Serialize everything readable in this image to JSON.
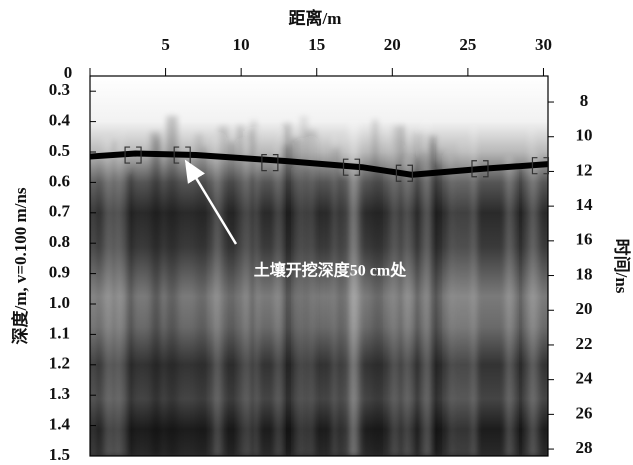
{
  "chart_data": {
    "type": "radargram",
    "x_label": "距离/m",
    "y_label": "深度/m, v=0.100 m/ns",
    "y2_label": "时间/ns",
    "xlim": [
      0,
      30.3
    ],
    "xticks": [
      0,
      5,
      10,
      15,
      20,
      25,
      30
    ],
    "ylim": [
      0.25,
      1.5
    ],
    "yticks": [
      0.3,
      0.4,
      0.5,
      0.6,
      0.7,
      0.8,
      0.9,
      {
        "value": 1.0,
        "label": "1.0"
      },
      1.1,
      1.2,
      1.3,
      1.4,
      1.5
    ],
    "y2lim": [
      6.5,
      28.4
    ],
    "y2ticks": [
      8,
      10,
      12,
      14,
      16,
      18,
      20,
      22,
      24,
      26,
      28
    ],
    "series": [
      {
        "kind": "line",
        "color": "#000000",
        "x": [
          0,
          3,
          7,
          13,
          18,
          21.3,
          26,
          30.3
        ],
        "values": [
          0.515,
          0.505,
          0.51,
          0.53,
          0.55,
          0.575,
          0.555,
          0.54
        ]
      },
      {
        "kind": "bracket",
        "color": "#333333",
        "x": [
          2.85,
          6.1,
          11.9,
          17.3,
          20.8,
          25.8,
          29.8
        ],
        "values": [
          0.51,
          0.51,
          0.535,
          0.55,
          0.57,
          0.555,
          0.545
        ]
      }
    ],
    "annotation": "土壤开挖深度50 cm处"
  }
}
